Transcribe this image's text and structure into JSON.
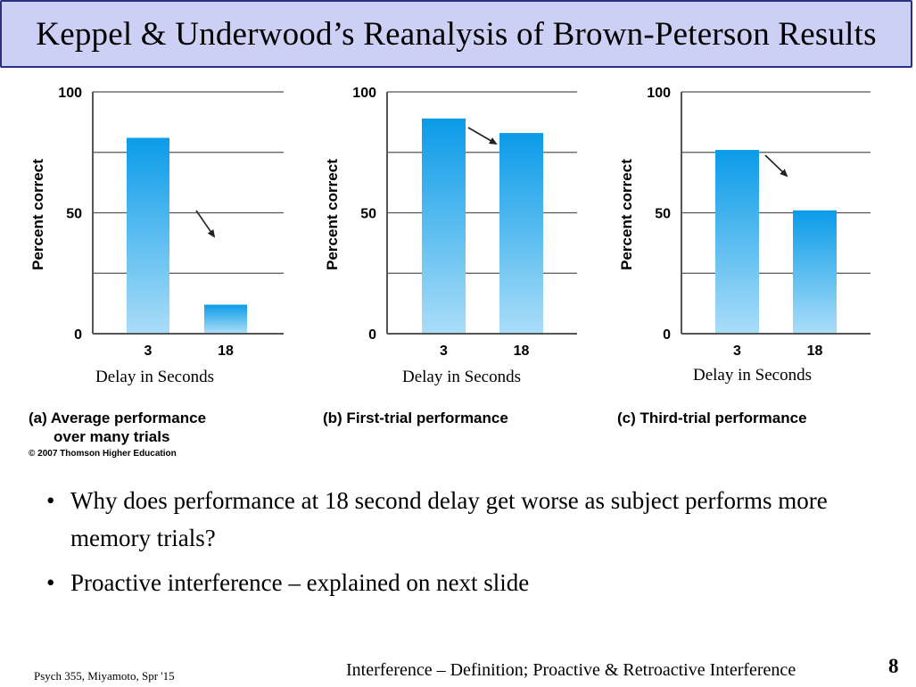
{
  "slide": {
    "title": "Keppel & Underwood’s Reanalysis of Brown-Peterson Results",
    "copyright": "© 2007 Thomson Higher Education",
    "bullets": [
      "Why does performance at 18 second delay get worse as subject performs more memory trials?",
      "Proactive interference – explained on next slide"
    ],
    "footer_left": "Psych 355, Miyamoto, Spr '15",
    "footer_center": "Interference – Definition; Proactive & Retroactive Interference",
    "page_number": "8"
  },
  "colors": {
    "title_bg": "#ccd0f4",
    "title_border": "#2b2f80",
    "bar_top": "#0a9be8",
    "bar_bottom": "#a9ddf8",
    "grid": "#555555"
  },
  "chart_data": [
    {
      "type": "bar",
      "categories": [
        "3",
        "18"
      ],
      "values": [
        81,
        12
      ],
      "ylabel": "Percent correct",
      "xlabel": "Delay in Seconds",
      "ylim": [
        0,
        100
      ],
      "yticks": [
        "0",
        "50",
        "100"
      ],
      "grid": true,
      "caption_line1": "(a) Average performance",
      "caption_line2": "over many trials"
    },
    {
      "type": "bar",
      "categories": [
        "3",
        "18"
      ],
      "values": [
        89,
        83
      ],
      "ylabel": "Percent correct",
      "xlabel": "Delay in Seconds",
      "ylim": [
        0,
        100
      ],
      "yticks": [
        "0",
        "50",
        "100"
      ],
      "grid": true,
      "caption_line1": "(b) First-trial performance"
    },
    {
      "type": "bar",
      "categories": [
        "3",
        "18"
      ],
      "values": [
        76,
        51
      ],
      "ylabel": "Percent correct",
      "xlabel": "Delay in Seconds",
      "ylim": [
        0,
        100
      ],
      "yticks": [
        "0",
        "50",
        "100"
      ],
      "grid": true,
      "caption_line1": "(c) Third-trial performance"
    }
  ]
}
